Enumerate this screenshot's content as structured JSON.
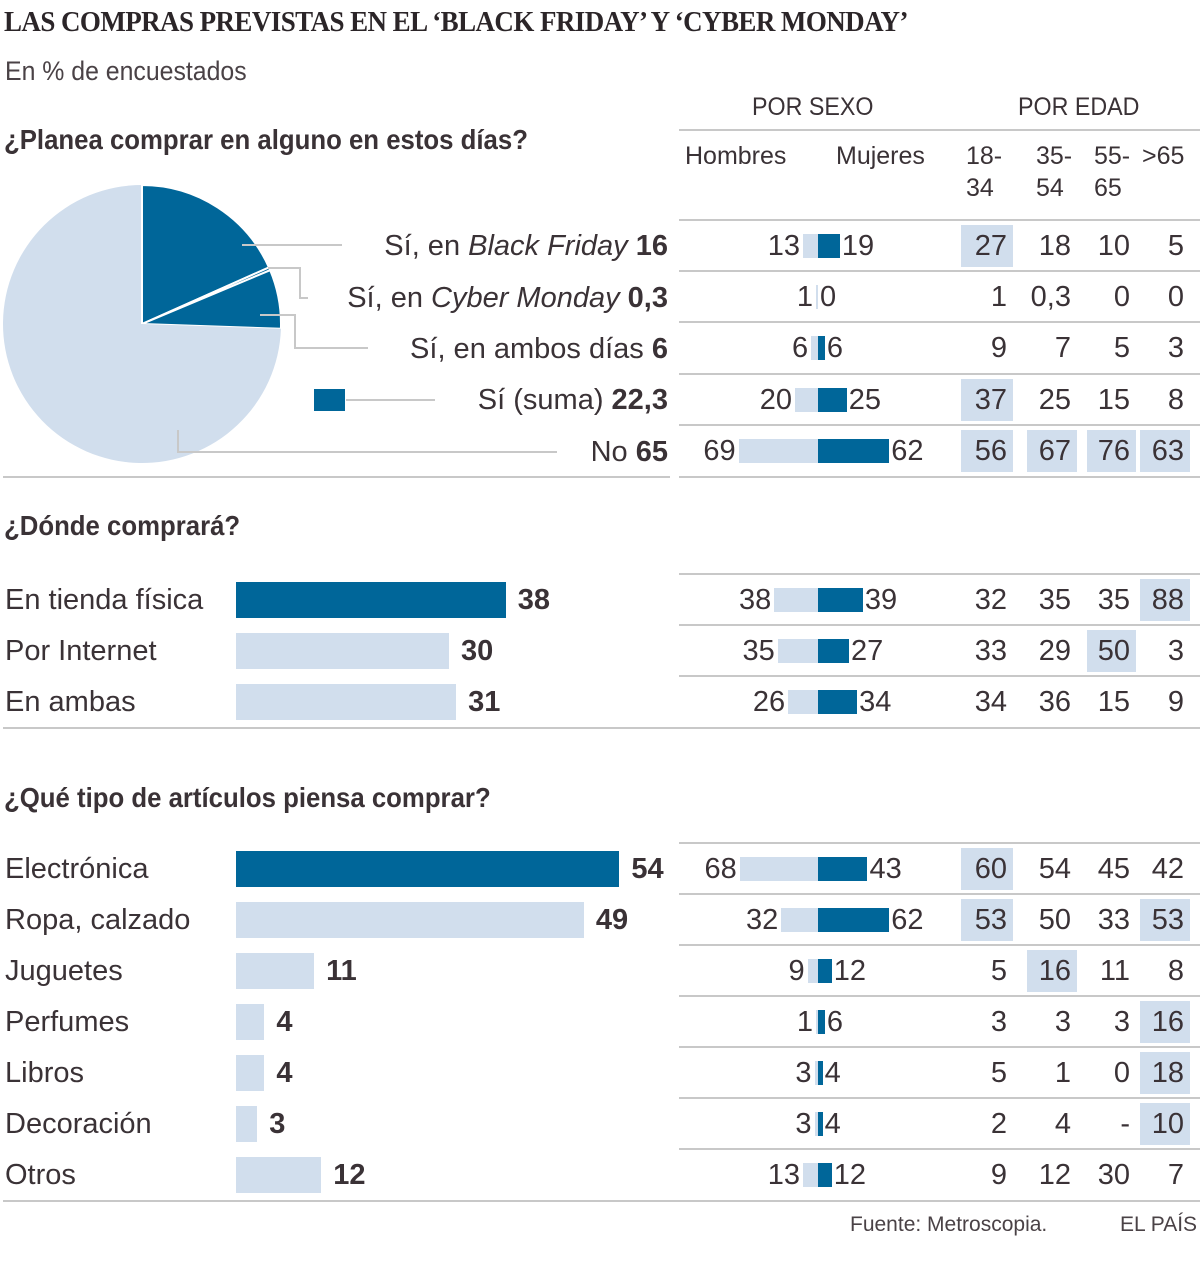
{
  "title": "LAS COMPRAS PREVISTAS EN EL ‘BLACK FRIDAY’ Y ‘CYBER MONDAY’",
  "subtitle": "En % de encuestados",
  "colors": {
    "dark": "#006699",
    "light": "#d1deed",
    "text": "#3a3236",
    "rule": "#c8c8c8"
  },
  "columns": {
    "sex_group": "POR SEXO",
    "age_group": "POR EDAD",
    "sex": [
      "Hombres",
      "Mujeres"
    ],
    "age": [
      [
        "18-",
        "34"
      ],
      [
        "35-",
        "54"
      ],
      [
        "55-",
        "65"
      ],
      [
        ">65",
        ""
      ]
    ]
  },
  "sections": [
    {
      "question": "¿Planea comprar en alguno en estos días?",
      "rows": [
        {
          "label_pre": "Sí, en ",
          "label_it": "Black Friday",
          "value": "16",
          "men": "13",
          "women": "19",
          "age": [
            "27",
            "18",
            "10",
            "5"
          ],
          "age_hl": [
            true,
            false,
            false,
            false
          ]
        },
        {
          "label_pre": "Sí, en ",
          "label_it": "Cyber Monday",
          "value": "0,3",
          "men": "1",
          "women": "0",
          "age": [
            "1",
            "0,3",
            "0",
            "0"
          ],
          "age_hl": [
            false,
            false,
            false,
            false
          ]
        },
        {
          "label_pre": "Sí, en ambos días",
          "label_it": "",
          "value": "6",
          "men": "6",
          "women": "6",
          "age": [
            "9",
            "7",
            "5",
            "3"
          ],
          "age_hl": [
            false,
            false,
            false,
            false
          ]
        },
        {
          "label_pre": "Sí (suma)",
          "label_it": "",
          "value": "22,3",
          "men": "20",
          "women": "25",
          "age": [
            "37",
            "25",
            "15",
            "8"
          ],
          "age_hl": [
            true,
            false,
            false,
            false
          ]
        },
        {
          "label_pre": "No",
          "label_it": "",
          "value": "65",
          "men": "69",
          "women": "62",
          "age": [
            "56",
            "67",
            "76",
            "63"
          ],
          "age_hl": [
            true,
            true,
            true,
            true
          ]
        }
      ]
    },
    {
      "question": "¿Dónde comprará?",
      "rows": [
        {
          "label": "En tienda física",
          "value": "38",
          "highlight": true,
          "men": "38",
          "women": "39",
          "age": [
            "32",
            "35",
            "35",
            "88"
          ],
          "age_hl": [
            false,
            false,
            false,
            true
          ]
        },
        {
          "label": "Por Internet",
          "value": "30",
          "highlight": false,
          "men": "35",
          "women": "27",
          "age": [
            "33",
            "29",
            "50",
            "3"
          ],
          "age_hl": [
            false,
            false,
            true,
            false
          ]
        },
        {
          "label": "En ambas",
          "value": "31",
          "highlight": false,
          "men": "26",
          "women": "34",
          "age": [
            "34",
            "36",
            "15",
            "9"
          ],
          "age_hl": [
            false,
            false,
            false,
            false
          ]
        }
      ]
    },
    {
      "question": "¿Qué tipo de artículos piensa comprar?",
      "rows": [
        {
          "label": "Electrónica",
          "value": "54",
          "highlight": true,
          "men": "68",
          "women": "43",
          "age": [
            "60",
            "54",
            "45",
            "42"
          ],
          "age_hl": [
            true,
            false,
            false,
            false
          ]
        },
        {
          "label": "Ropa, calzado",
          "value": "49",
          "highlight": false,
          "men": "32",
          "women": "62",
          "age": [
            "53",
            "50",
            "33",
            "53"
          ],
          "age_hl": [
            true,
            false,
            false,
            true
          ]
        },
        {
          "label": "Juguetes",
          "value": "11",
          "highlight": false,
          "men": "9",
          "women": "12",
          "age": [
            "5",
            "16",
            "11",
            "8"
          ],
          "age_hl": [
            false,
            true,
            false,
            false
          ]
        },
        {
          "label": "Perfumes",
          "value": "4",
          "highlight": false,
          "men": "1",
          "women": "6",
          "age": [
            "3",
            "3",
            "3",
            "16"
          ],
          "age_hl": [
            false,
            false,
            false,
            true
          ]
        },
        {
          "label": "Libros",
          "value": "4",
          "highlight": false,
          "men": "3",
          "women": "4",
          "age": [
            "5",
            "1",
            "0",
            "18"
          ],
          "age_hl": [
            false,
            false,
            false,
            true
          ]
        },
        {
          "label": "Decoración",
          "value": "3",
          "highlight": false,
          "men": "3",
          "women": "4",
          "age": [
            "2",
            "4",
            "-",
            "10"
          ],
          "age_hl": [
            false,
            false,
            false,
            true
          ]
        },
        {
          "label": "Otros",
          "value": "12",
          "highlight": false,
          "men": "13",
          "women": "12",
          "age": [
            "9",
            "12",
            "30",
            "7"
          ],
          "age_hl": [
            false,
            false,
            false,
            false
          ]
        }
      ]
    }
  ],
  "footer": {
    "source": "Fuente: Metroscopia.",
    "brand": "EL PAÍS"
  },
  "chart_data": [
    {
      "type": "pie",
      "title": "¿Planea comprar en alguno en estos días?",
      "unit": "% de encuestados",
      "slices": [
        {
          "name": "Sí, en Black Friday",
          "value": 16,
          "color": "#006699"
        },
        {
          "name": "Sí, en Cyber Monday",
          "value": 0.3,
          "color": "#006699"
        },
        {
          "name": "Sí, en ambos días",
          "value": 6,
          "color": "#006699"
        },
        {
          "name": "No",
          "value": 65,
          "color": "#d1deed"
        }
      ],
      "total_yes": 22.3
    },
    {
      "type": "bar",
      "title": "¿Dónde comprará?",
      "orientation": "horizontal",
      "categories": [
        "En tienda física",
        "Por Internet",
        "En ambas"
      ],
      "values": [
        38,
        30,
        31
      ]
    },
    {
      "type": "bar",
      "title": "¿Qué tipo de artículos piensa comprar?",
      "orientation": "horizontal",
      "categories": [
        "Electrónica",
        "Ropa, calzado",
        "Juguetes",
        "Perfumes",
        "Libros",
        "Decoración",
        "Otros"
      ],
      "values": [
        54,
        49,
        11,
        4,
        4,
        3,
        12
      ]
    },
    {
      "type": "bar",
      "title": "Por sexo",
      "orientation": "diverging",
      "categories": [
        "Sí, en Black Friday",
        "Sí, en Cyber Monday",
        "Sí, en ambos días",
        "Sí (suma)",
        "No",
        "En tienda física",
        "Por Internet",
        "En ambas",
        "Electrónica",
        "Ropa, calzado",
        "Juguetes",
        "Perfumes",
        "Libros",
        "Decoración",
        "Otros"
      ],
      "series": [
        {
          "name": "Hombres",
          "values": [
            13,
            1,
            6,
            20,
            69,
            38,
            35,
            26,
            68,
            32,
            9,
            1,
            3,
            3,
            13
          ]
        },
        {
          "name": "Mujeres",
          "values": [
            19,
            0,
            6,
            25,
            62,
            39,
            27,
            34,
            43,
            62,
            12,
            6,
            4,
            4,
            12
          ]
        }
      ]
    },
    {
      "type": "table",
      "title": "Por edad",
      "columns": [
        "18-34",
        "35-54",
        "55-65",
        ">65"
      ],
      "rows": [
        [
          "27",
          "18",
          "10",
          "5"
        ],
        [
          "1",
          "0,3",
          "0",
          "0"
        ],
        [
          "9",
          "7",
          "5",
          "3"
        ],
        [
          "37",
          "25",
          "15",
          "8"
        ],
        [
          "56",
          "67",
          "76",
          "63"
        ],
        [
          "32",
          "35",
          "35",
          "88"
        ],
        [
          "33",
          "29",
          "50",
          "3"
        ],
        [
          "34",
          "36",
          "15",
          "9"
        ],
        [
          "60",
          "54",
          "45",
          "42"
        ],
        [
          "53",
          "50",
          "33",
          "53"
        ],
        [
          "5",
          "16",
          "11",
          "8"
        ],
        [
          "3",
          "3",
          "3",
          "16"
        ],
        [
          "5",
          "1",
          "0",
          "18"
        ],
        [
          "2",
          "4",
          "-",
          "10"
        ],
        [
          "9",
          "12",
          "30",
          "7"
        ]
      ]
    }
  ]
}
